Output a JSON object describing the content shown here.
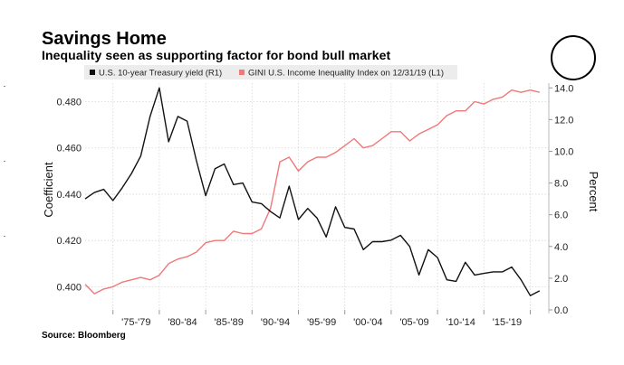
{
  "header": {
    "title": "Savings Home",
    "subtitle": "Inequality seen as supporting factor for bond bull market"
  },
  "source": "Source: Bloomberg",
  "colors": {
    "treasury": "#111111",
    "gini": "#f07878",
    "grid": "#d6d6d6"
  },
  "chart_data": {
    "type": "line",
    "title": "Savings Home",
    "subtitle": "Inequality seen as supporting factor for bond bull market",
    "xlabel": "",
    "ylabel_left": "Coefficient",
    "ylabel_right": "Percent",
    "x_tick_labels": [
      "'75-'79",
      "'80-'84",
      "'85-'89",
      "'90-'94",
      "'95-'99",
      "'00-'04",
      "'05-'09",
      "'10-'14",
      "'15-'19"
    ],
    "x_range": [
      1972,
      2022
    ],
    "y_left": {
      "range": [
        0.39,
        0.488
      ],
      "ticks": [
        "0.400",
        "0.420",
        "0.440",
        "0.460",
        "0.480"
      ]
    },
    "y_right": {
      "range": [
        0,
        14.3
      ],
      "ticks": [
        "0.0",
        "2.0",
        "4.0",
        "6.0",
        "8.0",
        "10.0",
        "12.0",
        "14.0"
      ]
    },
    "legend": [
      {
        "name": "U.S. 10-year Treasury yield (R1)",
        "axis": "right"
      },
      {
        "name": "GINI U.S. Income Inequality Index on 12/31/19 (L1)",
        "axis": "left"
      }
    ],
    "series": [
      {
        "name": "U.S. 10-year Treasury yield (R1)",
        "axis": "right",
        "x": [
          1972,
          1973,
          1974,
          1975,
          1976,
          1977,
          1978,
          1979,
          1980,
          1981,
          1982,
          1983,
          1984,
          1985,
          1986,
          1987,
          1988,
          1989,
          1990,
          1991,
          1992,
          1993,
          1994,
          1995,
          1996,
          1997,
          1998,
          1999,
          2000,
          2001,
          2002,
          2003,
          2004,
          2005,
          2006,
          2007,
          2008,
          2009,
          2010,
          2011,
          2012,
          2013,
          2014,
          2015,
          2016,
          2017,
          2018,
          2019,
          2020,
          2021
        ],
        "values": [
          7.0,
          7.4,
          7.6,
          6.9,
          7.7,
          8.6,
          9.7,
          12.2,
          14.0,
          10.6,
          12.2,
          11.9,
          9.4,
          7.2,
          8.9,
          9.2,
          7.9,
          8.0,
          6.8,
          6.7,
          6.2,
          5.8,
          7.8,
          5.7,
          6.4,
          5.8,
          4.6,
          6.5,
          5.2,
          5.1,
          3.8,
          4.3,
          4.3,
          4.4,
          4.7,
          4.0,
          2.2,
          3.8,
          3.3,
          1.9,
          1.8,
          3.0,
          2.2,
          2.3,
          2.4,
          2.4,
          2.7,
          1.9,
          0.9,
          1.2
        ]
      },
      {
        "name": "GINI U.S. Income Inequality Index on 12/31/19 (L1)",
        "axis": "left",
        "x": [
          1972,
          1973,
          1974,
          1975,
          1976,
          1977,
          1978,
          1979,
          1980,
          1981,
          1982,
          1983,
          1984,
          1985,
          1986,
          1987,
          1988,
          1989,
          1990,
          1991,
          1992,
          1993,
          1994,
          1995,
          1996,
          1997,
          1998,
          1999,
          2000,
          2001,
          2002,
          2003,
          2004,
          2005,
          2006,
          2007,
          2008,
          2009,
          2010,
          2011,
          2012,
          2013,
          2014,
          2015,
          2016,
          2017,
          2018,
          2019,
          2020,
          2021
        ],
        "values": [
          0.401,
          0.397,
          0.399,
          0.4,
          0.402,
          0.403,
          0.404,
          0.403,
          0.405,
          0.41,
          0.412,
          0.413,
          0.415,
          0.419,
          0.42,
          0.42,
          0.424,
          0.423,
          0.423,
          0.425,
          0.434,
          0.454,
          0.456,
          0.45,
          0.454,
          0.456,
          0.456,
          0.458,
          0.461,
          0.464,
          0.46,
          0.461,
          0.464,
          0.467,
          0.467,
          0.463,
          0.466,
          0.468,
          0.47,
          0.474,
          0.476,
          0.476,
          0.48,
          0.479,
          0.481,
          0.482,
          0.485,
          0.484,
          0.485,
          0.484
        ]
      }
    ]
  }
}
